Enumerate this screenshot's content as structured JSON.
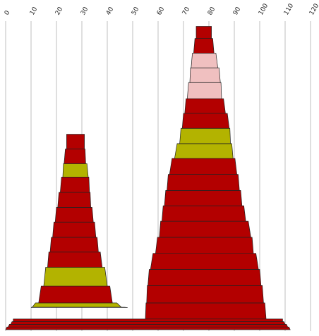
{
  "chart_data": {
    "type": "area",
    "description_of_marks": "stacked horizontal bands forming two cone-shaped distributions plus a low baseline band",
    "x_ticks": [
      "0",
      "10",
      "20",
      "30",
      "40",
      "50",
      "60",
      "70",
      "80",
      "90",
      "100",
      "110",
      "120"
    ],
    "xlim": [
      0,
      120
    ],
    "grid": true,
    "legend": "none",
    "colors": {
      "red": "#b30000",
      "olive": "#b3b300",
      "pink": "#f0c0c0",
      "outline": "#222222"
    },
    "shapes": [
      {
        "name": "left-cone",
        "bands": [
          {
            "y": [
              0.83,
              0.84
            ],
            "xl": 10.0,
            "xr": 48.0,
            "color": "olive"
          },
          {
            "y": [
              0.84,
              1.0
            ],
            "xl": 10.5,
            "xr": 45.5,
            "color": "olive"
          },
          {
            "y": [
              1.0,
              1.63
            ],
            "xl": 13.0,
            "xr": 42.0,
            "color": "red"
          },
          {
            "y": [
              1.63,
              2.33
            ],
            "xl": 15.0,
            "xr": 40.0,
            "color": "olive"
          },
          {
            "y": [
              2.33,
              2.9
            ],
            "xl": 16.5,
            "xr": 38.0,
            "color": "red"
          },
          {
            "y": [
              2.9,
              3.45
            ],
            "xl": 17.5,
            "xr": 36.5,
            "color": "red"
          },
          {
            "y": [
              3.45,
              4.02
            ],
            "xl": 18.5,
            "xr": 35.5,
            "color": "red"
          },
          {
            "y": [
              4.02,
              4.57
            ],
            "xl": 19.5,
            "xr": 34.5,
            "color": "red"
          },
          {
            "y": [
              4.57,
              5.13
            ],
            "xl": 20.5,
            "xr": 33.5,
            "color": "red"
          },
          {
            "y": [
              5.13,
              5.7
            ],
            "xl": 21.5,
            "xr": 33.0,
            "color": "red"
          },
          {
            "y": [
              5.7,
              6.2
            ],
            "xl": 22.5,
            "xr": 32.5,
            "color": "olive"
          },
          {
            "y": [
              6.2,
              6.75
            ],
            "xl": 23.0,
            "xr": 31.5,
            "color": "red"
          },
          {
            "y": [
              6.75,
              7.3
            ],
            "xl": 24.0,
            "xr": 31.0,
            "color": "red"
          }
        ]
      },
      {
        "name": "right-cone",
        "bands": [
          {
            "y": [
              0.4,
              1.0
            ],
            "xl": 55.0,
            "xr": 102.5,
            "color": "red"
          },
          {
            "y": [
              1.0,
              1.65
            ],
            "xl": 55.5,
            "xr": 101.5,
            "color": "red"
          },
          {
            "y": [
              1.65,
              2.25
            ],
            "xl": 56.0,
            "xr": 100.5,
            "color": "red"
          },
          {
            "y": [
              2.25,
              2.85
            ],
            "xl": 57.0,
            "xr": 99.5,
            "color": "red"
          },
          {
            "y": [
              2.85,
              3.45
            ],
            "xl": 59.0,
            "xr": 97.5,
            "color": "red"
          },
          {
            "y": [
              3.45,
              4.05
            ],
            "xl": 60.5,
            "xr": 96.5,
            "color": "red"
          },
          {
            "y": [
              4.05,
              4.63
            ],
            "xl": 61.5,
            "xr": 94.5,
            "color": "red"
          },
          {
            "y": [
              4.63,
              5.2
            ],
            "xl": 62.5,
            "xr": 93.0,
            "color": "red"
          },
          {
            "y": [
              5.2,
              5.8
            ],
            "xl": 63.5,
            "xr": 92.0,
            "color": "red"
          },
          {
            "y": [
              5.8,
              6.4
            ],
            "xl": 64.5,
            "xr": 91.0,
            "color": "red"
          },
          {
            "y": [
              6.4,
              6.95
            ],
            "xl": 66.5,
            "xr": 89.5,
            "color": "olive"
          },
          {
            "y": [
              6.95,
              7.52
            ],
            "xl": 68.5,
            "xr": 88.5,
            "color": "olive"
          },
          {
            "y": [
              7.52,
              8.08
            ],
            "xl": 69.5,
            "xr": 88.0,
            "color": "red"
          },
          {
            "y": [
              8.08,
              8.63
            ],
            "xl": 70.5,
            "xr": 86.5,
            "color": "red"
          },
          {
            "y": [
              8.63,
              9.23
            ],
            "xl": 71.5,
            "xr": 85.0,
            "color": "pink"
          },
          {
            "y": [
              9.23,
              9.78
            ],
            "xl": 72.5,
            "xr": 84.5,
            "color": "pink"
          },
          {
            "y": [
              9.78,
              10.33
            ],
            "xl": 73.0,
            "xr": 83.5,
            "color": "pink"
          },
          {
            "y": [
              10.33,
              10.88
            ],
            "xl": 74.0,
            "xr": 82.0,
            "color": "red"
          },
          {
            "y": [
              10.88,
              11.33
            ],
            "xl": 75.0,
            "xr": 81.0,
            "color": "red"
          }
        ]
      },
      {
        "name": "baseline",
        "bands": [
          {
            "y": [
              0.0,
              0.1
            ],
            "xl": 0.0,
            "xr": 112.0,
            "color": "red"
          },
          {
            "y": [
              0.1,
              0.2
            ],
            "xl": 1.0,
            "xr": 111.0,
            "color": "red"
          },
          {
            "y": [
              0.2,
              0.3
            ],
            "xl": 2.0,
            "xr": 110.0,
            "color": "red"
          },
          {
            "y": [
              0.3,
              0.4
            ],
            "xl": 3.0,
            "xr": 109.0,
            "color": "red"
          }
        ]
      }
    ]
  }
}
